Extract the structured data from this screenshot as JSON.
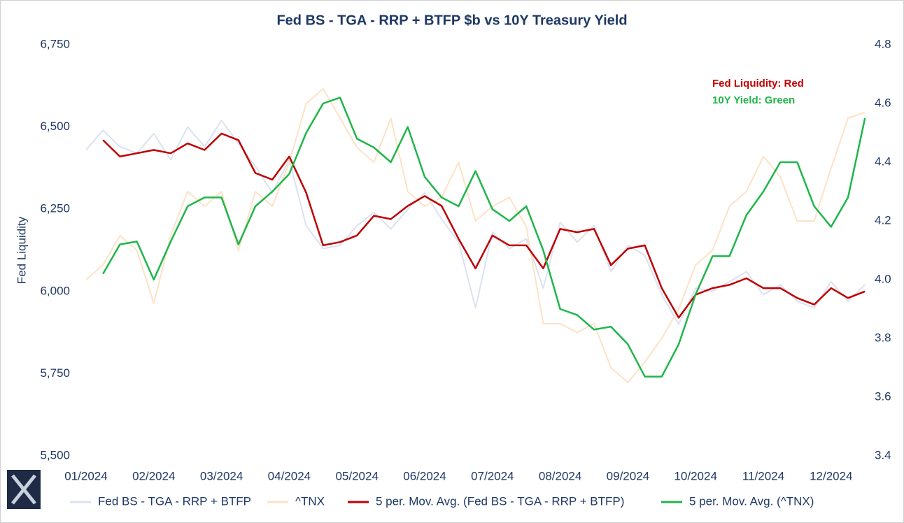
{
  "chart_data": {
    "type": "line",
    "title": "Fed BS - TGA - RRP + BTFP $b vs 10Y Treasury Yield",
    "y_label": "Fed Liquidity",
    "annotations": [
      {
        "text": "Fed Liquidity: Red",
        "color": "#c00000"
      },
      {
        "text": "10Y Yield: Green",
        "color": "#1fb64a"
      }
    ],
    "categories": [
      "01/2024",
      null,
      null,
      null,
      "02/2024",
      null,
      null,
      null,
      "03/2024",
      null,
      null,
      null,
      "04/2024",
      null,
      null,
      null,
      "05/2024",
      null,
      null,
      null,
      "06/2024",
      null,
      null,
      null,
      "07/2024",
      null,
      null,
      null,
      "08/2024",
      null,
      null,
      null,
      "09/2024",
      null,
      null,
      null,
      "10/2024",
      null,
      null,
      null,
      "11/2024",
      null,
      null,
      null,
      "12/2024",
      null,
      null
    ],
    "ylim": [
      5500,
      6750
    ],
    "yticks": [
      {
        "value": 5500,
        "label": "5,500"
      },
      {
        "value": 5750,
        "label": "5,750"
      },
      {
        "value": 6000,
        "label": "6,000"
      },
      {
        "value": 6250,
        "label": "6,250"
      },
      {
        "value": 6500,
        "label": "6,500"
      },
      {
        "value": 6750,
        "label": "6,750"
      }
    ],
    "y2lim": [
      3.4,
      4.8
    ],
    "y2ticks": [
      3.4,
      3.6,
      3.8,
      {
        "value": 4.0,
        "label": "4.0"
      },
      4.2,
      4.4,
      4.6,
      4.8
    ],
    "grid": false,
    "legend": "bottom",
    "series": [
      {
        "name": "Fed BS - TGA - RRP + BTFP",
        "color": "#dbe2f1",
        "width": 2,
        "values": [
          6430,
          6490,
          6440,
          6420,
          6480,
          6400,
          6500,
          6440,
          6520,
          6450,
          6380,
          6300,
          6400,
          6200,
          6130,
          6140,
          6200,
          6240,
          6190,
          6250,
          6300,
          6220,
          6150,
          5950,
          6180,
          6130,
          6160,
          6010,
          6210,
          6150,
          6200,
          6060,
          6140,
          6110,
          5990,
          5900,
          6010,
          6000,
          6030,
          6060,
          5990,
          6020,
          5970,
          5950,
          6030,
          5970,
          6020
        ]
      },
      {
        "name": "^TNX",
        "color": "#fde2c6",
        "width": 2,
        "axis": "y2",
        "values": [
          4.0,
          4.05,
          4.15,
          4.1,
          3.92,
          4.15,
          4.3,
          4.25,
          4.3,
          4.1,
          4.3,
          4.25,
          4.4,
          4.6,
          4.65,
          4.55,
          4.45,
          4.4,
          4.55,
          4.3,
          4.25,
          4.28,
          4.4,
          4.2,
          4.25,
          4.28,
          4.18,
          3.85,
          3.85,
          3.82,
          3.85,
          3.7,
          3.65,
          3.72,
          3.8,
          3.9,
          4.05,
          4.1,
          4.25,
          4.3,
          4.42,
          4.35,
          4.2,
          4.2,
          4.38,
          4.55,
          4.57
        ]
      },
      {
        "name": "5 per. Mov. Avg. (Fed BS - TGA - RRP + BTFP)",
        "color": "#c00000",
        "width": 2.5,
        "values": [
          null,
          6460,
          6410,
          6420,
          6430,
          6420,
          6450,
          6430,
          6480,
          6460,
          6360,
          6340,
          6410,
          6300,
          6140,
          6150,
          6170,
          6230,
          6220,
          6260,
          6290,
          6260,
          6160,
          6070,
          6170,
          6140,
          6140,
          6070,
          6190,
          6180,
          6190,
          6080,
          6130,
          6140,
          6010,
          5920,
          5990,
          6010,
          6020,
          6040,
          6010,
          6010,
          5980,
          5960,
          6010,
          5980,
          6000
        ]
      },
      {
        "name": "5 per. Mov. Avg. (^TNX)",
        "color": "#1fb64a",
        "width": 2.5,
        "axis": "y2",
        "values": [
          null,
          4.02,
          4.12,
          4.13,
          4.0,
          4.13,
          4.25,
          4.28,
          4.28,
          4.12,
          4.25,
          4.3,
          4.36,
          4.5,
          4.6,
          4.62,
          4.48,
          4.45,
          4.4,
          4.52,
          4.35,
          4.28,
          4.25,
          4.37,
          4.24,
          4.2,
          4.25,
          4.1,
          3.9,
          3.88,
          3.83,
          3.84,
          3.78,
          3.67,
          3.67,
          3.78,
          3.95,
          4.08,
          4.08,
          4.22,
          4.3,
          4.4,
          4.4,
          4.25,
          4.18,
          4.28,
          4.55
        ]
      }
    ]
  }
}
